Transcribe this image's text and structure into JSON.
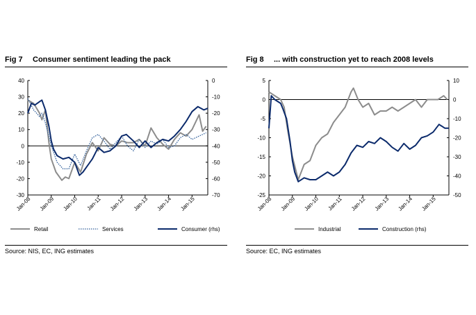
{
  "colors": {
    "grey": "#8c8c8c",
    "dotted": "#2e5d99",
    "navy": "#0b2a6b"
  },
  "figures": [
    {
      "fig_label": "Fig 7",
      "title": "Consumer sentiment leading the pack",
      "source": "Source: NIS, EC, ING estimates",
      "chart_data": {
        "type": "line",
        "x_ticks": [
          "Jan-08",
          "Jan-09",
          "Jan-10",
          "Jan-11",
          "Jan-12",
          "Jan-13",
          "Jan-14",
          "Jan-15"
        ],
        "x_range": [
          2008.0,
          2015.67
        ],
        "y_left": {
          "min": -30,
          "max": 40,
          "ticks": [
            40,
            30,
            20,
            10,
            0,
            -10,
            -20,
            -30
          ]
        },
        "y_right": {
          "min": -70,
          "max": 0,
          "ticks": [
            0,
            -10,
            -20,
            -30,
            -40,
            -50,
            -60,
            -70
          ]
        },
        "grid": false,
        "legend_position": "bottom",
        "series": [
          {
            "name": "Retail",
            "axis": "left",
            "style": "grey",
            "x": [
              2008.0,
              2008.25,
              2008.5,
              2008.6,
              2008.75,
              2008.9,
              2009.0,
              2009.2,
              2009.45,
              2009.6,
              2009.75,
              2010.0,
              2010.25,
              2010.5,
              2010.75,
              2011.0,
              2011.25,
              2011.5,
              2011.75,
              2012.0,
              2012.25,
              2012.5,
              2012.75,
              2013.0,
              2013.25,
              2013.5,
              2013.75,
              2014.0,
              2014.25,
              2014.5,
              2014.75,
              2015.0,
              2015.3,
              2015.45,
              2015.6
            ],
            "y": [
              28,
              26,
              20,
              16,
              22,
              2,
              -8,
              -16,
              -21,
              -19,
              -20,
              -10,
              -16,
              -5,
              2,
              -3,
              5,
              1,
              0,
              3,
              2,
              2,
              4,
              0,
              11,
              5,
              1,
              -2,
              4,
              8,
              6,
              10,
              19,
              9,
              12
            ]
          },
          {
            "name": "Services",
            "axis": "left",
            "style": "dotted",
            "x": [
              2008.0,
              2008.25,
              2008.5,
              2008.6,
              2008.75,
              2009.0,
              2009.25,
              2009.5,
              2009.75,
              2010.0,
              2010.25,
              2010.5,
              2010.75,
              2011.0,
              2011.25,
              2011.5,
              2011.75,
              2012.0,
              2012.25,
              2012.5,
              2012.75,
              2013.0,
              2013.25,
              2013.5,
              2013.75,
              2014.0,
              2014.25,
              2014.5,
              2014.75,
              2015.0,
              2015.3,
              2015.6
            ],
            "y": [
              29,
              22,
              18,
              20,
              14,
              0,
              -10,
              -14,
              -14,
              -5,
              -12,
              -3,
              5,
              7,
              3,
              -2,
              2,
              6,
              0,
              -3,
              4,
              -1,
              3,
              1,
              4,
              -1,
              0,
              5,
              7,
              4,
              6,
              8
            ]
          },
          {
            "name": "Consumer (rhs)",
            "axis": "right",
            "style": "navy",
            "x": [
              2008.0,
              2008.15,
              2008.3,
              2008.5,
              2008.6,
              2008.75,
              2008.9,
              2009.0,
              2009.1,
              2009.25,
              2009.5,
              2009.75,
              2010.0,
              2010.2,
              2010.35,
              2010.5,
              2010.75,
              2011.0,
              2011.25,
              2011.5,
              2011.75,
              2012.0,
              2012.2,
              2012.5,
              2012.75,
              2013.0,
              2013.25,
              2013.5,
              2013.75,
              2014.0,
              2014.25,
              2014.5,
              2014.75,
              2015.0,
              2015.25,
              2015.5,
              2015.67
            ],
            "y": [
              -20,
              -14,
              -15,
              -13,
              -12,
              -18,
              -28,
              -37,
              -42,
              -46,
              -48,
              -47,
              -50,
              -58,
              -56,
              -53,
              -48,
              -41,
              -44,
              -43,
              -40,
              -34,
              -33,
              -37,
              -41,
              -37,
              -41,
              -38,
              -36,
              -37,
              -34,
              -30,
              -25,
              -19,
              -16,
              -18,
              -17
            ]
          }
        ]
      },
      "legend": [
        "Retail",
        "Services",
        "Consumer (rhs)"
      ]
    },
    {
      "fig_label": "Fig 8",
      "title": "... with construction yet to reach 2008 levels",
      "source": "Source: EC, ING estimates",
      "chart_data": {
        "type": "line",
        "x_ticks": [
          "Jan-08",
          "Jan-09",
          "Jan-10",
          "Jan-11",
          "Jan-12",
          "Jan-13",
          "Jan-14",
          "Jan-15"
        ],
        "x_range": [
          2008.0,
          2015.67
        ],
        "y_left": {
          "min": -25,
          "max": 5,
          "ticks": [
            5,
            0,
            -5,
            -10,
            -15,
            -20,
            -25
          ]
        },
        "y_right": {
          "min": -50,
          "max": 10,
          "ticks": [
            10,
            0,
            -10,
            -20,
            -30,
            -40,
            -50
          ]
        },
        "grid": false,
        "legend_position": "bottom",
        "series": [
          {
            "name": "Industrial",
            "axis": "left",
            "style": "grey",
            "x": [
              2008.0,
              2008.25,
              2008.5,
              2008.65,
              2008.8,
              2009.0,
              2009.25,
              2009.5,
              2009.75,
              2010.0,
              2010.25,
              2010.5,
              2010.75,
              2011.0,
              2011.25,
              2011.5,
              2011.6,
              2011.8,
              2012.0,
              2012.25,
              2012.5,
              2012.75,
              2013.0,
              2013.25,
              2013.5,
              2013.75,
              2014.0,
              2014.25,
              2014.5,
              2014.75,
              2015.0,
              2015.2,
              2015.45,
              2015.6
            ],
            "y": [
              2,
              1,
              0,
              -2,
              -8,
              -15,
              -21,
              -17,
              -16,
              -12,
              -10,
              -9,
              -6,
              -4,
              -2,
              2,
              3,
              0,
              -2,
              -1,
              -4,
              -3,
              -3,
              -2,
              -3,
              -2,
              -1,
              0,
              -2,
              0,
              0,
              0,
              1,
              0
            ]
          },
          {
            "name": "Construction (rhs)",
            "axis": "right",
            "style": "navy",
            "x": [
              2008.0,
              2008.1,
              2008.25,
              2008.5,
              2008.6,
              2008.75,
              2008.9,
              2009.0,
              2009.1,
              2009.25,
              2009.5,
              2009.75,
              2010.0,
              2010.25,
              2010.5,
              2010.75,
              2011.0,
              2011.25,
              2011.5,
              2011.75,
              2012.0,
              2012.25,
              2012.5,
              2012.75,
              2013.0,
              2013.25,
              2013.5,
              2013.75,
              2014.0,
              2014.25,
              2014.5,
              2014.75,
              2015.0,
              2015.25,
              2015.5,
              2015.67
            ],
            "y": [
              -15,
              2,
              0,
              -2,
              -5,
              -10,
              -22,
              -32,
              -38,
              -43,
              -41,
              -42,
              -42,
              -40,
              -38,
              -40,
              -38,
              -34,
              -28,
              -24,
              -25,
              -22,
              -23,
              -20,
              -22,
              -25,
              -27,
              -23,
              -26,
              -24,
              -20,
              -19,
              -17,
              -13,
              -15,
              -15
            ]
          }
        ]
      },
      "legend": [
        "Industrial",
        "Construction (rhs)"
      ]
    }
  ]
}
